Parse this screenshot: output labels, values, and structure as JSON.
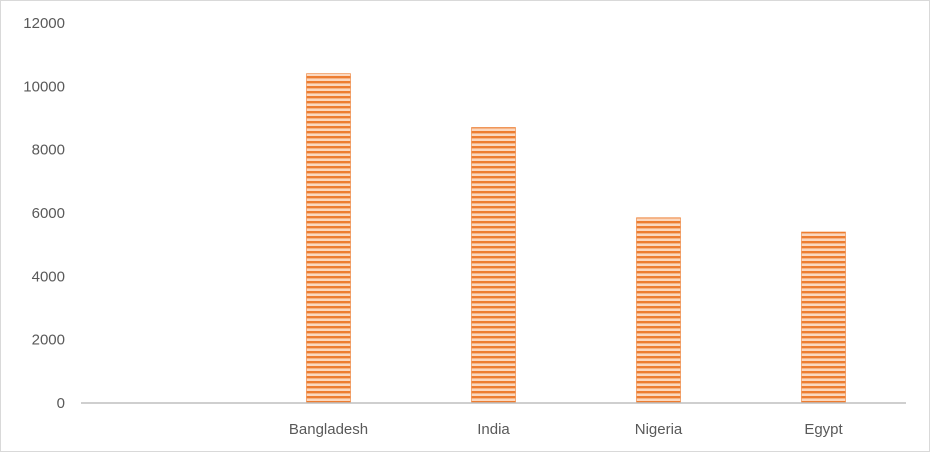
{
  "chart_data": {
    "type": "bar",
    "categories": [
      "",
      "Bangladesh",
      "India",
      "Nigeria",
      "Egypt"
    ],
    "values": [
      0,
      10400,
      8700,
      5850,
      5400
    ],
    "title": "",
    "xlabel": "",
    "ylabel": "",
    "ylim": [
      0,
      12000
    ],
    "yticks": [
      0,
      2000,
      4000,
      6000,
      8000,
      10000,
      12000
    ],
    "grid": false,
    "legend": "none",
    "bar_color": "#ed7d31",
    "bar_pattern": "horizontal-stripes"
  }
}
